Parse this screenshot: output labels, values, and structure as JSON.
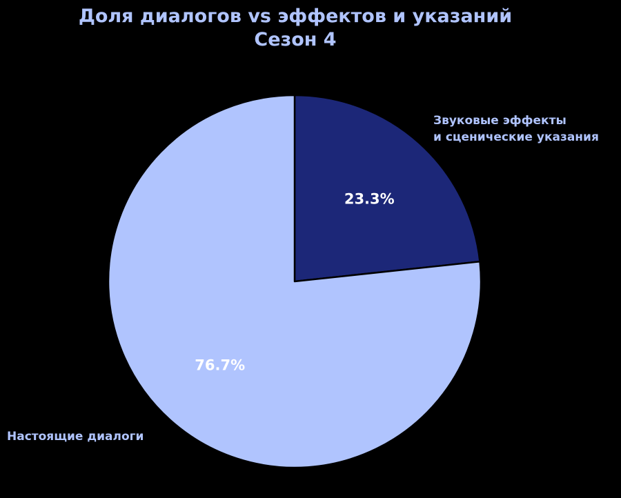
{
  "chart_data": {
    "type": "pie",
    "title_line1": "Доля диалогов vs эффектов и указаний",
    "title_line2": "Сезон 4",
    "slices": [
      {
        "label_lines": [
          "Звуковые эффекты",
          "и сценические указания"
        ],
        "value": 23.3,
        "pct_label": "23.3%",
        "color": "#1c2778"
      },
      {
        "label_lines": [
          "Настоящие диалоги"
        ],
        "value": 76.7,
        "pct_label": "76.7%",
        "color": "#b0c4fe"
      }
    ],
    "start_angle": "12 o'clock, clockwise",
    "edge_color": "#000000",
    "title_color": "#b0c4fe",
    "label_color": "#b0c4fe",
    "pct_color": "#ffffff",
    "background": "#000000"
  }
}
